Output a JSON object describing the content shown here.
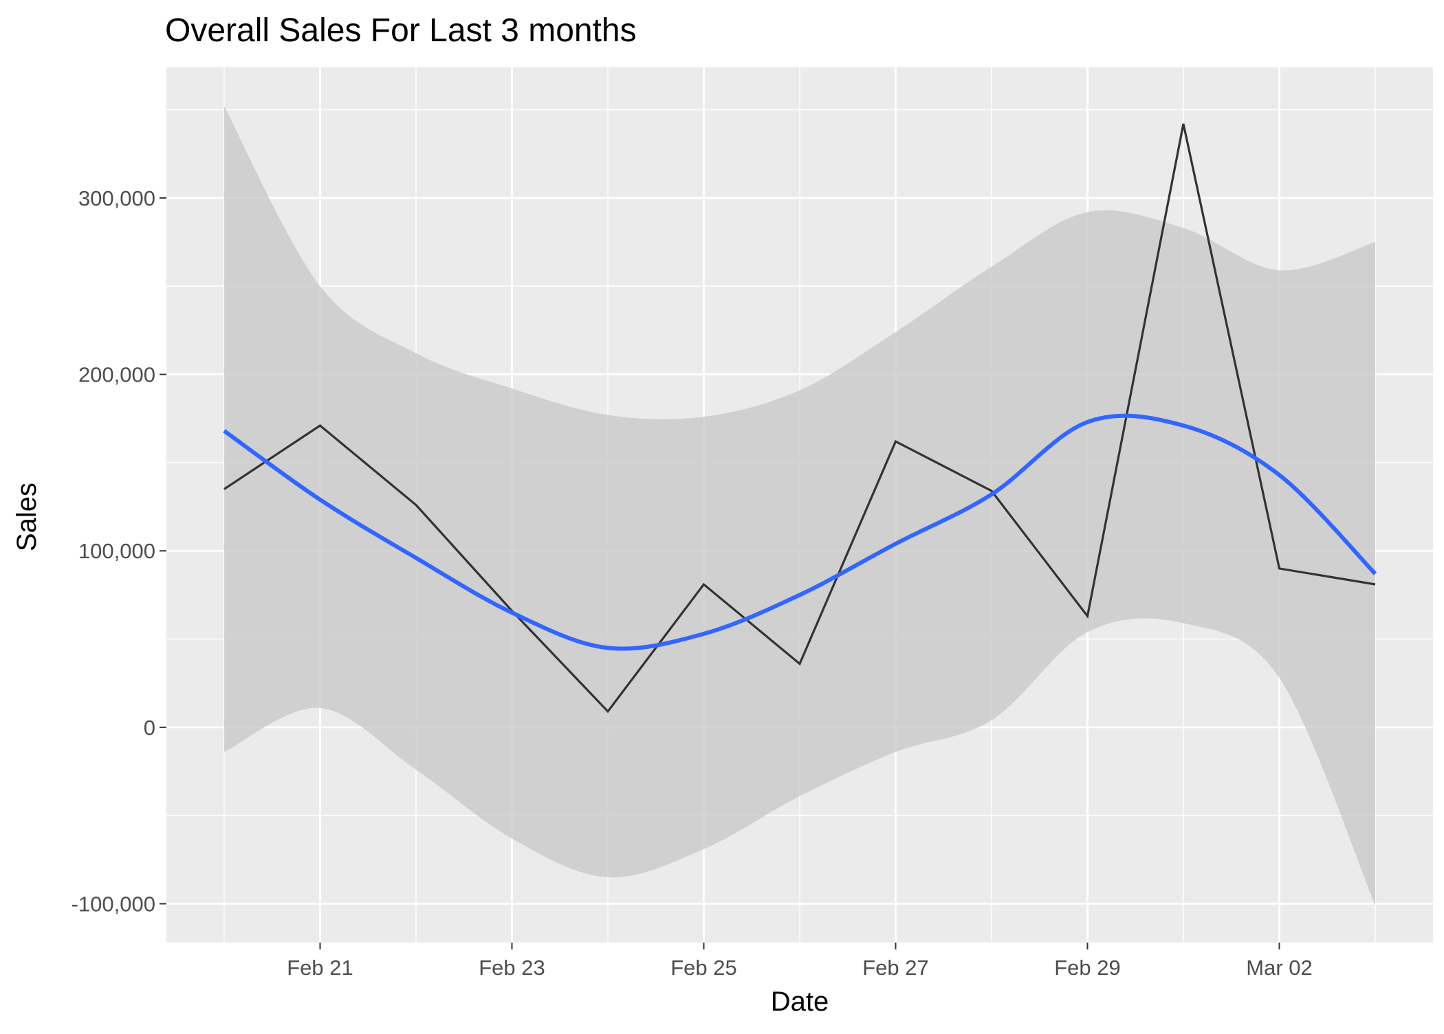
{
  "chart_data": {
    "type": "line",
    "title": "Overall Sales For Last 3 months",
    "xlabel": "Date",
    "ylabel": "Sales",
    "x_dates": [
      "Feb 20",
      "Feb 21",
      "Feb 22",
      "Feb 23",
      "Feb 24",
      "Feb 25",
      "Feb 26",
      "Feb 27",
      "Feb 28",
      "Feb 29",
      "Mar 01",
      "Mar 02",
      "Mar 03"
    ],
    "x_tick_labels": [
      "Feb 21",
      "Feb 23",
      "Feb 25",
      "Feb 27",
      "Feb 29",
      "Mar 02"
    ],
    "y_tick_labels": [
      "-100,000",
      "0",
      "100,000",
      "200,000",
      "300,000"
    ],
    "y_ticks": [
      -100000,
      0,
      100000,
      200000,
      300000
    ],
    "ylim": [
      -122000,
      374000
    ],
    "grid": true,
    "series": [
      {
        "kind": "observed",
        "values": [
          135000,
          171000,
          126000,
          66000,
          9000,
          81000,
          36000,
          162000,
          134000,
          63000,
          342000,
          90000,
          81000
        ]
      },
      {
        "kind": "smoothed trend",
        "values": [
          168000,
          129000,
          96000,
          65000,
          45000,
          53000,
          75000,
          104000,
          132000,
          173000,
          171000,
          143000,
          87000
        ]
      },
      {
        "kind": "confidence band upper",
        "values": [
          352000,
          250000,
          212000,
          192000,
          177000,
          176000,
          191000,
          224000,
          261000,
          292000,
          283000,
          259000,
          275000
        ]
      },
      {
        "kind": "confidence band lower",
        "values": [
          -14000,
          11000,
          -24000,
          -63000,
          -85000,
          -69000,
          -39000,
          -14000,
          4000,
          54000,
          59000,
          28000,
          -101000
        ]
      }
    ],
    "colors": {
      "panel_background": "#ebebeb",
      "grid": "#ffffff",
      "observed_line": "#333333",
      "trend_line": "#3366ff",
      "band": "#c8c8c8"
    }
  }
}
